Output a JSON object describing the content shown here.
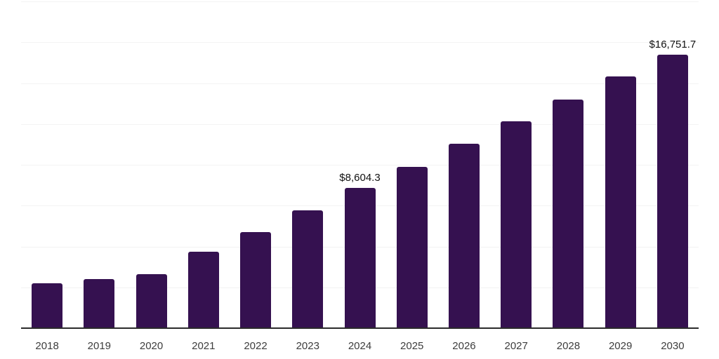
{
  "chart_data": {
    "type": "bar",
    "title": "",
    "xlabel": "",
    "ylabel": "",
    "categories": [
      "2018",
      "2019",
      "2020",
      "2021",
      "2022",
      "2023",
      "2024",
      "2025",
      "2026",
      "2027",
      "2028",
      "2029",
      "2030"
    ],
    "values": [
      2750,
      3000,
      3300,
      4670,
      5900,
      7200,
      8604.3,
      9860,
      11280,
      12650,
      13980,
      15390,
      16751.7
    ],
    "data_labels": [
      {
        "category": "2024",
        "text": "$8,604.3"
      },
      {
        "category": "2030",
        "text": "$16,751.7"
      }
    ],
    "ylim": [
      0,
      20000
    ],
    "gridline_step": 2500,
    "grid": true,
    "legend_position": "none",
    "colors": {
      "bar": "#351150",
      "gridline": "#f3f3f3",
      "axis_line": "#2b2b2b",
      "tick_label": "#3d3d3d",
      "data_label": "#111111",
      "background": "#ffffff"
    }
  }
}
